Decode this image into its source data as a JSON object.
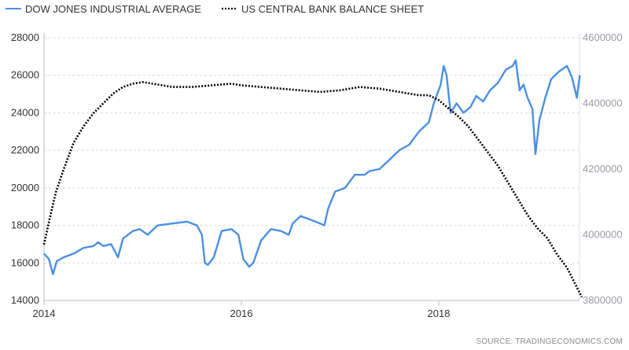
{
  "legend": [
    {
      "label": "DOW JONES INDUSTRIAL AVERAGE",
      "style": "solid",
      "color": "#4a90e2"
    },
    {
      "label": "US CENTRAL BANK BALANCE SHEET",
      "style": "dotted",
      "color": "#000000"
    }
  ],
  "source": "SOURCE:  TRADINGECONOMICS.COM",
  "chart_data": {
    "type": "line",
    "title": "",
    "xlabel": "",
    "ylabel_left": "",
    "ylabel_right": "",
    "x_tick_labels": [
      "2014",
      "2016",
      "2018"
    ],
    "x_range": [
      2014.0,
      2019.45
    ],
    "left_axis": {
      "min": 14000,
      "max": 28000,
      "ticks": [
        "14000",
        "16000",
        "18000",
        "20000",
        "22000",
        "24000",
        "26000",
        "28000"
      ]
    },
    "right_axis": {
      "min": 3800000,
      "max": 4600000,
      "ticks": [
        "3800000",
        "4000000",
        "4200000",
        "4400000",
        "4600000"
      ]
    },
    "grid": "horizontal dashed",
    "series": [
      {
        "name": "DOW JONES INDUSTRIAL AVERAGE",
        "axis": "left",
        "color": "#4a90e2",
        "points": [
          [
            2014.0,
            16500
          ],
          [
            2014.05,
            16200
          ],
          [
            2014.09,
            15400
          ],
          [
            2014.13,
            16100
          ],
          [
            2014.2,
            16300
          ],
          [
            2014.3,
            16500
          ],
          [
            2014.4,
            16800
          ],
          [
            2014.5,
            16900
          ],
          [
            2014.55,
            17100
          ],
          [
            2014.6,
            16900
          ],
          [
            2014.68,
            17000
          ],
          [
            2014.75,
            16300
          ],
          [
            2014.8,
            17300
          ],
          [
            2014.9,
            17700
          ],
          [
            2014.97,
            17800
          ],
          [
            2015.05,
            17500
          ],
          [
            2015.15,
            18000
          ],
          [
            2015.3,
            18100
          ],
          [
            2015.45,
            18200
          ],
          [
            2015.55,
            18000
          ],
          [
            2015.6,
            17500
          ],
          [
            2015.63,
            16000
          ],
          [
            2015.66,
            15900
          ],
          [
            2015.72,
            16300
          ],
          [
            2015.8,
            17700
          ],
          [
            2015.9,
            17800
          ],
          [
            2015.97,
            17500
          ],
          [
            2016.02,
            16200
          ],
          [
            2016.08,
            15800
          ],
          [
            2016.12,
            16000
          ],
          [
            2016.2,
            17200
          ],
          [
            2016.3,
            17800
          ],
          [
            2016.4,
            17700
          ],
          [
            2016.48,
            17500
          ],
          [
            2016.52,
            18100
          ],
          [
            2016.6,
            18500
          ],
          [
            2016.7,
            18300
          ],
          [
            2016.8,
            18100
          ],
          [
            2016.84,
            18000
          ],
          [
            2016.88,
            18900
          ],
          [
            2016.95,
            19800
          ],
          [
            2017.05,
            20000
          ],
          [
            2017.15,
            20700
          ],
          [
            2017.25,
            20700
          ],
          [
            2017.3,
            20900
          ],
          [
            2017.4,
            21000
          ],
          [
            2017.5,
            21500
          ],
          [
            2017.6,
            22000
          ],
          [
            2017.7,
            22300
          ],
          [
            2017.8,
            23000
          ],
          [
            2017.9,
            23500
          ],
          [
            2017.95,
            24500
          ],
          [
            2018.02,
            25500
          ],
          [
            2018.05,
            26500
          ],
          [
            2018.08,
            26000
          ],
          [
            2018.12,
            24000
          ],
          [
            2018.18,
            24500
          ],
          [
            2018.25,
            24000
          ],
          [
            2018.32,
            24300
          ],
          [
            2018.38,
            24900
          ],
          [
            2018.45,
            24600
          ],
          [
            2018.52,
            25200
          ],
          [
            2018.6,
            25600
          ],
          [
            2018.68,
            26300
          ],
          [
            2018.75,
            26500
          ],
          [
            2018.78,
            26800
          ],
          [
            2018.82,
            25200
          ],
          [
            2018.86,
            25500
          ],
          [
            2018.9,
            24800
          ],
          [
            2018.95,
            24200
          ],
          [
            2018.98,
            21800
          ],
          [
            2019.02,
            23600
          ],
          [
            2019.08,
            24800
          ],
          [
            2019.14,
            25800
          ],
          [
            2019.22,
            26200
          ],
          [
            2019.3,
            26500
          ],
          [
            2019.35,
            25900
          ],
          [
            2019.4,
            24800
          ],
          [
            2019.43,
            26000
          ]
        ]
      },
      {
        "name": "US CENTRAL BANK BALANCE SHEET",
        "axis": "right",
        "color": "#000000",
        "points": [
          [
            2014.0,
            3970000
          ],
          [
            2014.05,
            4040000
          ],
          [
            2014.12,
            4130000
          ],
          [
            2014.2,
            4200000
          ],
          [
            2014.3,
            4280000
          ],
          [
            2014.4,
            4330000
          ],
          [
            2014.5,
            4370000
          ],
          [
            2014.6,
            4400000
          ],
          [
            2014.7,
            4430000
          ],
          [
            2014.8,
            4450000
          ],
          [
            2014.9,
            4460000
          ],
          [
            2015.0,
            4465000
          ],
          [
            2015.1,
            4460000
          ],
          [
            2015.2,
            4455000
          ],
          [
            2015.3,
            4450000
          ],
          [
            2015.5,
            4450000
          ],
          [
            2015.7,
            4455000
          ],
          [
            2015.9,
            4460000
          ],
          [
            2016.0,
            4455000
          ],
          [
            2016.2,
            4450000
          ],
          [
            2016.4,
            4445000
          ],
          [
            2016.6,
            4440000
          ],
          [
            2016.8,
            4435000
          ],
          [
            2017.0,
            4440000
          ],
          [
            2017.2,
            4450000
          ],
          [
            2017.4,
            4445000
          ],
          [
            2017.6,
            4435000
          ],
          [
            2017.8,
            4425000
          ],
          [
            2017.9,
            4425000
          ],
          [
            2018.0,
            4410000
          ],
          [
            2018.1,
            4385000
          ],
          [
            2018.2,
            4360000
          ],
          [
            2018.3,
            4330000
          ],
          [
            2018.4,
            4290000
          ],
          [
            2018.5,
            4250000
          ],
          [
            2018.6,
            4210000
          ],
          [
            2018.7,
            4160000
          ],
          [
            2018.8,
            4110000
          ],
          [
            2018.9,
            4060000
          ],
          [
            2019.0,
            4020000
          ],
          [
            2019.1,
            3990000
          ],
          [
            2019.2,
            3940000
          ],
          [
            2019.3,
            3900000
          ],
          [
            2019.4,
            3840000
          ],
          [
            2019.45,
            3810000
          ]
        ]
      }
    ]
  }
}
